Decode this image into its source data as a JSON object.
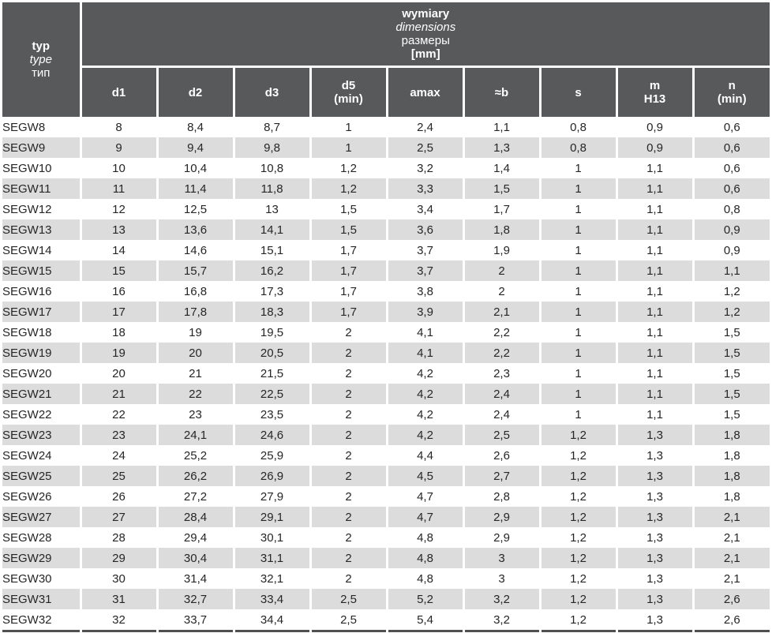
{
  "colors": {
    "header_bg": "#58595b",
    "header_text": "#ffffff",
    "row_white": "#ffffff",
    "row_gray": "#dcdcdc",
    "body_text": "#262626",
    "bottom_border": "#4f5052"
  },
  "table": {
    "type_header": {
      "line1": "typ",
      "line2": "type",
      "line3": "тип"
    },
    "group_header": {
      "line1": "wymiary",
      "line2": "dimensions",
      "line3": "размеры",
      "line4": "[mm]"
    },
    "columns": [
      {
        "label": "d1",
        "sub": ""
      },
      {
        "label": "d2",
        "sub": ""
      },
      {
        "label": "d3",
        "sub": ""
      },
      {
        "label": "d5",
        "sub": "(min)"
      },
      {
        "label": "amax",
        "sub": ""
      },
      {
        "label": "≈b",
        "sub": ""
      },
      {
        "label": "s",
        "sub": ""
      },
      {
        "label": "m",
        "sub": "H13"
      },
      {
        "label": "n",
        "sub": "(min)"
      }
    ],
    "rows": [
      {
        "type": "SEGW8",
        "values": [
          "8",
          "8,4",
          "8,7",
          "1",
          "2,4",
          "1,1",
          "0,8",
          "0,9",
          "0,6"
        ]
      },
      {
        "type": "SEGW9",
        "values": [
          "9",
          "9,4",
          "9,8",
          "1",
          "2,5",
          "1,3",
          "0,8",
          "0,9",
          "0,6"
        ]
      },
      {
        "type": "SEGW10",
        "values": [
          "10",
          "10,4",
          "10,8",
          "1,2",
          "3,2",
          "1,4",
          "1",
          "1,1",
          "0,6"
        ]
      },
      {
        "type": "SEGW11",
        "values": [
          "11",
          "11,4",
          "11,8",
          "1,2",
          "3,3",
          "1,5",
          "1",
          "1,1",
          "0,6"
        ]
      },
      {
        "type": "SEGW12",
        "values": [
          "12",
          "12,5",
          "13",
          "1,5",
          "3,4",
          "1,7",
          "1",
          "1,1",
          "0,8"
        ]
      },
      {
        "type": "SEGW13",
        "values": [
          "13",
          "13,6",
          "14,1",
          "1,5",
          "3,6",
          "1,8",
          "1",
          "1,1",
          "0,9"
        ]
      },
      {
        "type": "SEGW14",
        "values": [
          "14",
          "14,6",
          "15,1",
          "1,7",
          "3,7",
          "1,9",
          "1",
          "1,1",
          "0,9"
        ]
      },
      {
        "type": "SEGW15",
        "values": [
          "15",
          "15,7",
          "16,2",
          "1,7",
          "3,7",
          "2",
          "1",
          "1,1",
          "1,1"
        ]
      },
      {
        "type": "SEGW16",
        "values": [
          "16",
          "16,8",
          "17,3",
          "1,7",
          "3,8",
          "2",
          "1",
          "1,1",
          "1,2"
        ]
      },
      {
        "type": "SEGW17",
        "values": [
          "17",
          "17,8",
          "18,3",
          "1,7",
          "3,9",
          "2,1",
          "1",
          "1,1",
          "1,2"
        ]
      },
      {
        "type": "SEGW18",
        "values": [
          "18",
          "19",
          "19,5",
          "2",
          "4,1",
          "2,2",
          "1",
          "1,1",
          "1,5"
        ]
      },
      {
        "type": "SEGW19",
        "values": [
          "19",
          "20",
          "20,5",
          "2",
          "4,1",
          "2,2",
          "1",
          "1,1",
          "1,5"
        ]
      },
      {
        "type": "SEGW20",
        "values": [
          "20",
          "21",
          "21,5",
          "2",
          "4,2",
          "2,3",
          "1",
          "1,1",
          "1,5"
        ]
      },
      {
        "type": "SEGW21",
        "values": [
          "21",
          "22",
          "22,5",
          "2",
          "4,2",
          "2,4",
          "1",
          "1,1",
          "1,5"
        ]
      },
      {
        "type": "SEGW22",
        "values": [
          "22",
          "23",
          "23,5",
          "2",
          "4,2",
          "2,4",
          "1",
          "1,1",
          "1,5"
        ]
      },
      {
        "type": "SEGW23",
        "values": [
          "23",
          "24,1",
          "24,6",
          "2",
          "4,2",
          "2,5",
          "1,2",
          "1,3",
          "1,8"
        ]
      },
      {
        "type": "SEGW24",
        "values": [
          "24",
          "25,2",
          "25,9",
          "2",
          "4,4",
          "2,6",
          "1,2",
          "1,3",
          "1,8"
        ]
      },
      {
        "type": "SEGW25",
        "values": [
          "25",
          "26,2",
          "26,9",
          "2",
          "4,5",
          "2,7",
          "1,2",
          "1,3",
          "1,8"
        ]
      },
      {
        "type": "SEGW26",
        "values": [
          "26",
          "27,2",
          "27,9",
          "2",
          "4,7",
          "2,8",
          "1,2",
          "1,3",
          "1,8"
        ]
      },
      {
        "type": "SEGW27",
        "values": [
          "27",
          "28,4",
          "29,1",
          "2",
          "4,7",
          "2,9",
          "1,2",
          "1,3",
          "2,1"
        ]
      },
      {
        "type": "SEGW28",
        "values": [
          "28",
          "29,4",
          "30,1",
          "2",
          "4,8",
          "2,9",
          "1,2",
          "1,3",
          "2,1"
        ]
      },
      {
        "type": "SEGW29",
        "values": [
          "29",
          "30,4",
          "31,1",
          "2",
          "4,8",
          "3",
          "1,2",
          "1,3",
          "2,1"
        ]
      },
      {
        "type": "SEGW30",
        "values": [
          "30",
          "31,4",
          "32,1",
          "2",
          "4,8",
          "3",
          "1,2",
          "1,3",
          "2,1"
        ]
      },
      {
        "type": "SEGW31",
        "values": [
          "31",
          "32,7",
          "33,4",
          "2,5",
          "5,2",
          "3,2",
          "1,2",
          "1,3",
          "2,6"
        ]
      },
      {
        "type": "SEGW32",
        "values": [
          "32",
          "33,7",
          "34,4",
          "2,5",
          "5,4",
          "3,2",
          "1,2",
          "1,3",
          "2,6"
        ]
      }
    ]
  }
}
